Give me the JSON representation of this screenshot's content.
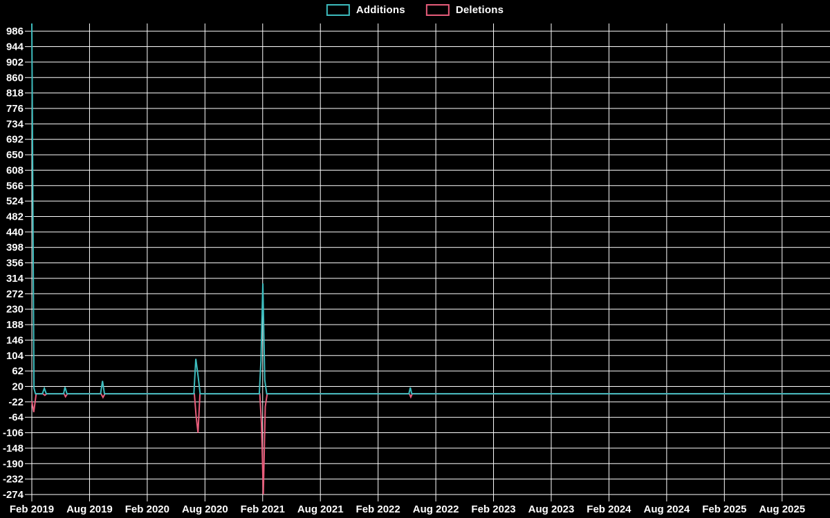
{
  "chart_data": {
    "type": "line",
    "title": "",
    "legend_position": "top-center",
    "grid": true,
    "colors": {
      "background": "#000000",
      "grid": "#ffffff",
      "text": "#ffffff",
      "additions": "#3dbcbe",
      "deletions": "#e85d7b"
    },
    "legend": [
      {
        "name": "Additions",
        "color": "#3dbcbe"
      },
      {
        "name": "Deletions",
        "color": "#e85d7b"
      }
    ],
    "x_axis": {
      "label": "",
      "unit": "months since Feb 2019",
      "tick_labels": [
        "Feb 2019",
        "Aug 2019",
        "Feb 2020",
        "Aug 2020",
        "Feb 2021",
        "Aug 2021",
        "Feb 2022",
        "Aug 2022",
        "Feb 2023",
        "Aug 2023",
        "Feb 2024",
        "Aug 2024",
        "Feb 2025",
        "Aug 2025"
      ],
      "tick_positions_months": [
        0,
        6,
        12,
        18,
        24,
        30,
        36,
        42,
        48,
        54,
        60,
        66,
        72,
        78
      ],
      "range_months": [
        0,
        83
      ]
    },
    "y_axis": {
      "label": "",
      "min": -274,
      "max": 1007,
      "tick_step": 42,
      "tick_labels": [
        986,
        944,
        902,
        860,
        818,
        776,
        734,
        692,
        650,
        608,
        566,
        524,
        482,
        440,
        398,
        356,
        314,
        272,
        230,
        188,
        146,
        104,
        62,
        20,
        -22,
        -64,
        -106,
        -148,
        -190,
        -232,
        -274
      ]
    },
    "series": [
      {
        "name": "Additions",
        "color": "#3dbcbe",
        "points": [
          [
            0,
            1007
          ],
          [
            0.22,
            15
          ],
          [
            0.38,
            0
          ],
          [
            1.1,
            0
          ],
          [
            1.3,
            15
          ],
          [
            1.5,
            0
          ],
          [
            3.3,
            0
          ],
          [
            3.45,
            18
          ],
          [
            3.65,
            0
          ],
          [
            7.15,
            0
          ],
          [
            7.35,
            35
          ],
          [
            7.55,
            0
          ],
          [
            16.85,
            0
          ],
          [
            17.05,
            95
          ],
          [
            17.3,
            45
          ],
          [
            17.5,
            0
          ],
          [
            23.65,
            0
          ],
          [
            23.82,
            90
          ],
          [
            24.02,
            300
          ],
          [
            24.22,
            37
          ],
          [
            24.42,
            0
          ],
          [
            39.2,
            0
          ],
          [
            39.35,
            17
          ],
          [
            39.5,
            0
          ],
          [
            83,
            0
          ]
        ]
      },
      {
        "name": "Deletions",
        "color": "#e85d7b",
        "points": [
          [
            0,
            -20
          ],
          [
            0.2,
            -50
          ],
          [
            0.45,
            0
          ],
          [
            1.15,
            0
          ],
          [
            1.35,
            -4
          ],
          [
            1.55,
            0
          ],
          [
            3.35,
            0
          ],
          [
            3.5,
            -8
          ],
          [
            3.7,
            0
          ],
          [
            7.2,
            0
          ],
          [
            7.4,
            -10
          ],
          [
            7.6,
            0
          ],
          [
            16.9,
            0
          ],
          [
            17.08,
            -60
          ],
          [
            17.28,
            -106
          ],
          [
            17.48,
            0
          ],
          [
            23.7,
            0
          ],
          [
            23.87,
            -80
          ],
          [
            24.07,
            -274
          ],
          [
            24.27,
            -35
          ],
          [
            24.47,
            0
          ],
          [
            39.25,
            0
          ],
          [
            39.4,
            -9
          ],
          [
            39.55,
            0
          ],
          [
            83,
            0
          ]
        ]
      }
    ]
  }
}
